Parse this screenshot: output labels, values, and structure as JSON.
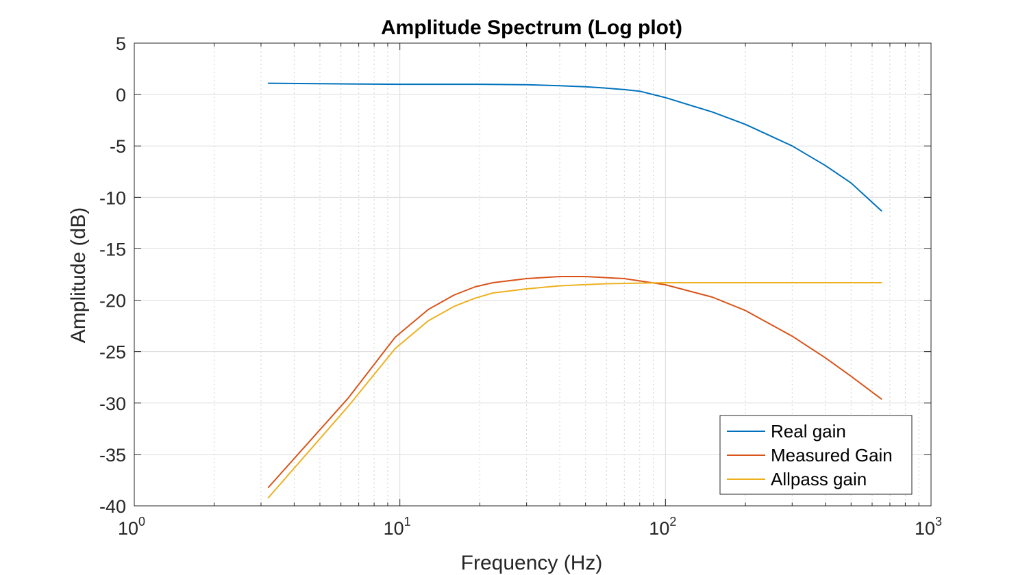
{
  "chart_data": {
    "type": "line",
    "title": "Amplitude Spectrum (Log plot)",
    "xlabel": "Frequency (Hz)",
    "ylabel": "Amplitude (dB)",
    "xscale": "log",
    "xlim": [
      1,
      1000
    ],
    "ylim": [
      -40,
      5
    ],
    "x_ticks": [
      {
        "base": "10",
        "exp": "0",
        "value": 1
      },
      {
        "base": "10",
        "exp": "1",
        "value": 10
      },
      {
        "base": "10",
        "exp": "2",
        "value": 100
      },
      {
        "base": "10",
        "exp": "3",
        "value": 1000
      }
    ],
    "y_ticks": [
      "5",
      "0",
      "-5",
      "-10",
      "-15",
      "-20",
      "-25",
      "-30",
      "-35",
      "-40"
    ],
    "grid": true,
    "legend_position": "bottom-right",
    "series": [
      {
        "name": "Real gain",
        "color": "#0072BD",
        "x": [
          3.2,
          5,
          10,
          20,
          30,
          40,
          50,
          60,
          70,
          80,
          100,
          150,
          200,
          300,
          400,
          500,
          650
        ],
        "y": [
          1.1,
          1.05,
          1.0,
          1.0,
          0.95,
          0.85,
          0.75,
          0.62,
          0.48,
          0.33,
          -0.3,
          -1.7,
          -2.9,
          -5.0,
          -6.9,
          -8.6,
          -11.3
        ]
      },
      {
        "name": "Measured Gain",
        "color": "#D95319",
        "x": [
          3.2,
          6.4,
          9.6,
          12.8,
          16,
          19.2,
          22.4,
          30,
          40,
          50,
          70,
          100,
          150,
          200,
          300,
          400,
          500,
          650
        ],
        "y": [
          -38.2,
          -29.5,
          -23.6,
          -20.9,
          -19.5,
          -18.7,
          -18.3,
          -17.9,
          -17.7,
          -17.7,
          -17.9,
          -18.5,
          -19.7,
          -21.0,
          -23.5,
          -25.6,
          -27.4,
          -29.6
        ]
      },
      {
        "name": "Allpass gain",
        "color": "#EDB120",
        "x": [
          3.2,
          6.4,
          9.6,
          12.8,
          16,
          19.2,
          22.4,
          30,
          40,
          60,
          100,
          200,
          400,
          650
        ],
        "y": [
          -39.2,
          -30.3,
          -24.7,
          -22.0,
          -20.6,
          -19.8,
          -19.3,
          -18.9,
          -18.6,
          -18.4,
          -18.3,
          -18.3,
          -18.3,
          -18.3
        ]
      }
    ]
  }
}
